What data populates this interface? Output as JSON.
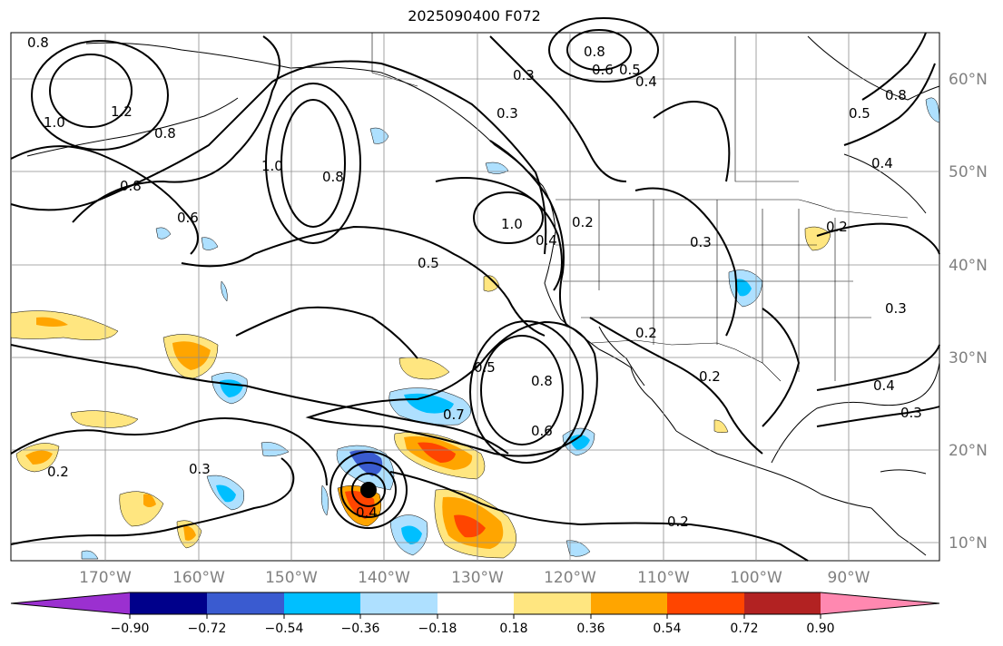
{
  "title": "2025090400 F072",
  "map": {
    "lon_labels": [
      "170°W",
      "160°W",
      "150°W",
      "140°W",
      "130°W",
      "120°W",
      "110°W",
      "100°W",
      "90°W"
    ],
    "lat_labels": [
      "60°N",
      "50°N",
      "40°N",
      "30°N",
      "20°N",
      "10°N"
    ],
    "contour_labels": [
      "0.8",
      "1.0",
      "1.2",
      "0.8",
      "0.6",
      "1.0",
      "0.8",
      "0.5",
      "0.3",
      "0.3",
      "0.8",
      "0.6",
      "0.5",
      "0.4",
      "0.8",
      "1.0",
      "0.4",
      "0.2",
      "0.3",
      "0.2",
      "0.2",
      "0.3",
      "0.4",
      "0.3",
      "0.5",
      "0.7",
      "0.8",
      "0.6",
      "0.3",
      "0.2",
      "0.4",
      "0.2",
      "0.5",
      "0.4",
      "0.8",
      "0.2"
    ],
    "storm_marker": "tropical-cyclone-center"
  },
  "colorbar": {
    "ticks": [
      "−0.90",
      "−0.72",
      "−0.54",
      "−0.36",
      "−0.18",
      "0.18",
      "0.36",
      "0.54",
      "0.72",
      "0.90"
    ],
    "colors": [
      "#9b30d0",
      "#00008b",
      "#3a5bd0",
      "#00bfff",
      "#aee0ff",
      "#ffffff",
      "#ffe680",
      "#ffa500",
      "#ff4500",
      "#b22222",
      "#ff88b0"
    ]
  }
}
